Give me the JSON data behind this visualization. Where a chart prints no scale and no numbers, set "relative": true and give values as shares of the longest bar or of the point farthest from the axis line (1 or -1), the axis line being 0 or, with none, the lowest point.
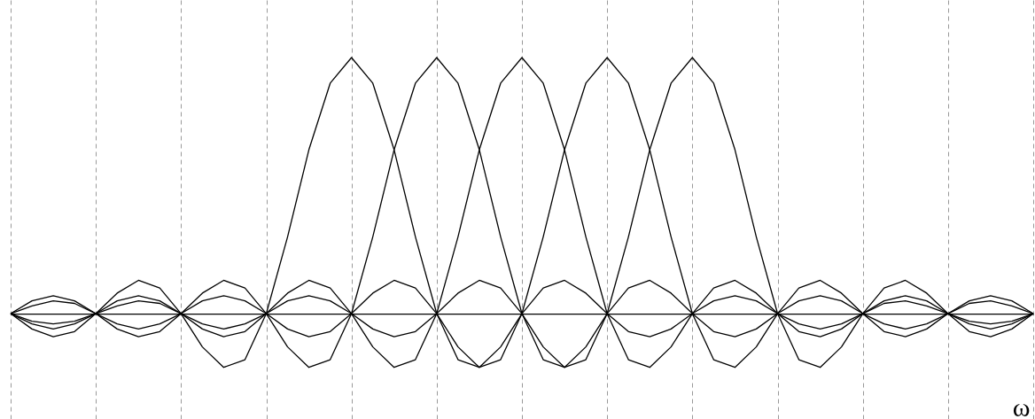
{
  "chart_data": {
    "type": "line",
    "relative": true,
    "xlabel": "ω",
    "grid": "x",
    "categories": [
      null,
      null,
      null,
      null,
      null,
      null,
      null,
      null,
      null,
      null,
      null,
      null,
      null,
      null,
      null,
      null,
      null,
      null,
      null,
      null,
      null,
      null,
      null,
      null,
      null,
      null,
      null,
      null,
      null,
      null,
      null,
      null,
      null,
      null,
      null,
      null,
      null,
      null,
      null,
      null,
      null,
      null,
      null,
      null,
      null,
      null,
      null,
      null,
      null
    ],
    "series": [
      {
        "color": "#000000",
        "values": [
          0,
          -0.06,
          -0.09,
          -0.07,
          0,
          0.08,
          0.13,
          0.1,
          0,
          -0.13,
          -0.21,
          -0.18,
          0,
          0.3,
          0.64,
          0.9,
          1,
          0.9,
          0.64,
          0.3,
          0,
          -0.18,
          -0.21,
          -0.13,
          0,
          0.1,
          0.13,
          0.08,
          0,
          -0.07,
          -0.09,
          -0.06,
          0,
          0.05,
          0.07,
          0.05,
          0,
          -0.04,
          -0.06,
          -0.04,
          0,
          0.04,
          0.05,
          0.03,
          0,
          -0.03,
          -0.04,
          -0.03,
          0
        ]
      },
      {
        "color": "#000000",
        "values": [
          0,
          0.05,
          0.07,
          0.05,
          0,
          -0.06,
          -0.09,
          -0.07,
          0,
          0.08,
          0.13,
          0.1,
          0,
          -0.13,
          -0.21,
          -0.18,
          0,
          0.3,
          0.64,
          0.9,
          1,
          0.9,
          0.64,
          0.3,
          0,
          -0.18,
          -0.21,
          -0.13,
          0,
          0.1,
          0.13,
          0.08,
          0,
          -0.07,
          -0.09,
          -0.06,
          0,
          0.05,
          0.07,
          0.05,
          0,
          -0.04,
          -0.06,
          -0.04,
          0,
          0.04,
          0.05,
          0.03,
          0
        ]
      },
      {
        "color": "#000000",
        "values": [
          0,
          -0.04,
          -0.06,
          -0.04,
          0,
          0.05,
          0.07,
          0.05,
          0,
          -0.06,
          -0.09,
          -0.07,
          0,
          0.08,
          0.13,
          0.1,
          0,
          -0.13,
          -0.21,
          -0.18,
          0,
          0.3,
          0.64,
          0.9,
          1,
          0.9,
          0.64,
          0.3,
          0,
          -0.18,
          -0.21,
          -0.13,
          0,
          0.1,
          0.13,
          0.08,
          0,
          -0.07,
          -0.09,
          -0.06,
          0,
          0.05,
          0.07,
          0.05,
          0,
          -0.04,
          -0.06,
          -0.04,
          0
        ]
      },
      {
        "color": "#000000",
        "values": [
          0,
          0.03,
          0.05,
          0.04,
          0,
          -0.04,
          -0.06,
          -0.04,
          0,
          0.05,
          0.07,
          0.05,
          0,
          -0.06,
          -0.09,
          -0.07,
          0,
          0.08,
          0.13,
          0.1,
          0,
          -0.13,
          -0.21,
          -0.18,
          0,
          0.3,
          0.64,
          0.9,
          1,
          0.9,
          0.64,
          0.3,
          0,
          -0.18,
          -0.21,
          -0.13,
          0,
          0.1,
          0.13,
          0.08,
          0,
          -0.07,
          -0.09,
          -0.06,
          0,
          0.05,
          0.07,
          0.05,
          0
        ]
      },
      {
        "color": "#000000",
        "values": [
          0,
          -0.03,
          -0.04,
          -0.03,
          0,
          0.03,
          0.05,
          0.04,
          0,
          -0.04,
          -0.06,
          -0.04,
          0,
          0.05,
          0.07,
          0.05,
          0,
          -0.06,
          -0.09,
          -0.07,
          0,
          0.08,
          0.13,
          0.1,
          0,
          -0.13,
          -0.21,
          -0.18,
          0,
          0.3,
          0.64,
          0.9,
          1,
          0.9,
          0.64,
          0.3,
          0,
          -0.18,
          -0.21,
          -0.13,
          0,
          0.1,
          0.13,
          0.08,
          0,
          -0.07,
          -0.09,
          -0.06,
          0
        ]
      }
    ]
  }
}
